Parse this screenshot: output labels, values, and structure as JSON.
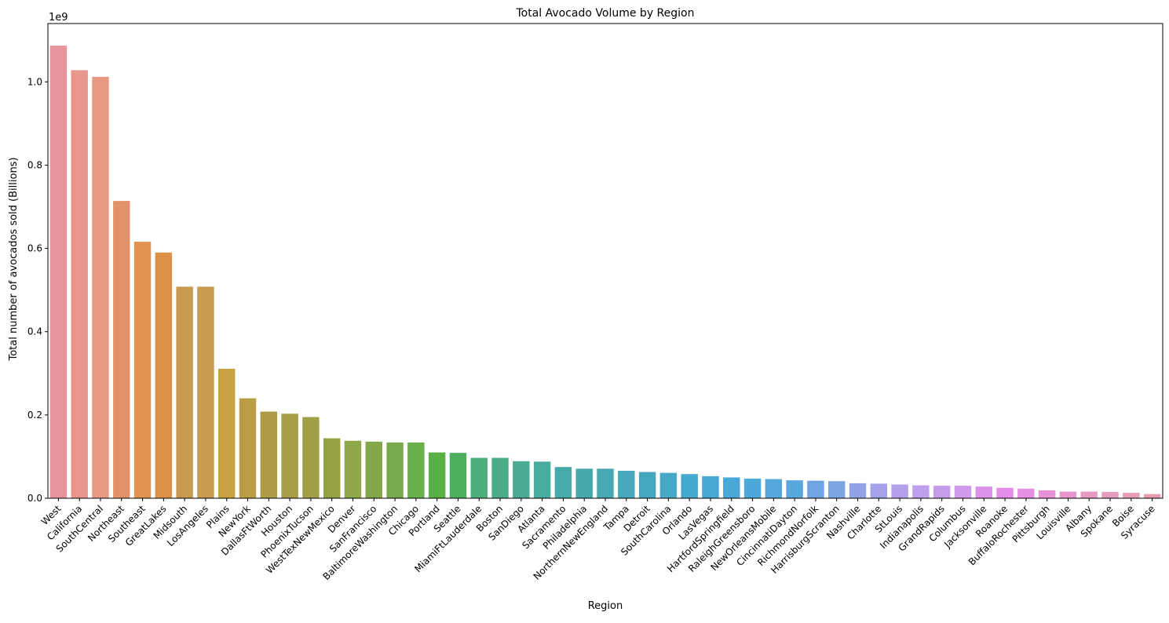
{
  "chart_data": {
    "type": "bar",
    "title": "Total Avocado Volume by Region",
    "xlabel": "Region",
    "ylabel": "Total number of avocados sold (Billions)",
    "offset_label": "1e9",
    "ylim": [
      0,
      1.14
    ],
    "yticks": [
      0.0,
      0.2,
      0.4,
      0.6,
      0.8,
      1.0
    ],
    "ytick_labels": [
      "0.0",
      "0.2",
      "0.4",
      "0.6",
      "0.8",
      "1.0"
    ],
    "grid": false,
    "legend": "none",
    "categories": [
      "West",
      "California",
      "SouthCentral",
      "Northeast",
      "Southeast",
      "GreatLakes",
      "Midsouth",
      "LosAngeles",
      "Plains",
      "NewYork",
      "DallasFtWorth",
      "Houston",
      "PhoenixTucson",
      "WestTexNewMexico",
      "Denver",
      "SanFrancisco",
      "BaltimoreWashington",
      "Chicago",
      "Portland",
      "Seattle",
      "MiamiFtLauderdale",
      "Boston",
      "SanDiego",
      "Atlanta",
      "Sacramento",
      "Philadelphia",
      "NorthernNewEngland",
      "Tampa",
      "Detroit",
      "SouthCarolina",
      "Orlando",
      "LasVegas",
      "HartfordSpringfield",
      "RaleighGreensboro",
      "NewOrleansMobile",
      "CincinnatiDayton",
      "RichmondNorfolk",
      "HarrisburgScranton",
      "Nashville",
      "Charlotte",
      "StLouis",
      "Indianapolis",
      "GrandRapids",
      "Columbus",
      "Jacksonville",
      "Roanoke",
      "BuffaloRochester",
      "Pittsburgh",
      "Louisville",
      "Albany",
      "Spokane",
      "Boise",
      "Syracuse"
    ],
    "values": [
      1.087,
      1.028,
      1.012,
      0.714,
      0.616,
      0.59,
      0.508,
      0.508,
      0.311,
      0.24,
      0.208,
      0.203,
      0.195,
      0.144,
      0.138,
      0.136,
      0.134,
      0.134,
      0.11,
      0.109,
      0.097,
      0.097,
      0.089,
      0.088,
      0.075,
      0.071,
      0.071,
      0.066,
      0.063,
      0.061,
      0.058,
      0.053,
      0.05,
      0.047,
      0.046,
      0.043,
      0.042,
      0.041,
      0.036,
      0.035,
      0.033,
      0.031,
      0.03,
      0.03,
      0.028,
      0.025,
      0.023,
      0.019,
      0.016,
      0.016,
      0.015,
      0.013,
      0.01
    ],
    "colors": [
      "#e8949e",
      "#e9968e",
      "#e99a84",
      "#e1936a",
      "#e1934f",
      "#db9248",
      "#ca9950",
      "#ca9b4e",
      "#c6a240",
      "#b99c43",
      "#ae9b45",
      "#a79e46",
      "#a09f47",
      "#96a145",
      "#8ea748",
      "#84a849",
      "#78aa4c",
      "#6aaf4b",
      "#58b045",
      "#4daf5e",
      "#4bae7a",
      "#4aad86",
      "#48ac94",
      "#47ab9e",
      "#46aaa8",
      "#45a9ac",
      "#46a8b2",
      "#46a8ba",
      "#45a7bf",
      "#47a7c6",
      "#45a8cd",
      "#49a7d4",
      "#4aa8d8",
      "#4da8da",
      "#55a7dc",
      "#59a7df",
      "#6ea4e2",
      "#7ca3e2",
      "#91a2e6",
      "#a3a1e8",
      "#b3a0e9",
      "#bd9fec",
      "#c69deb",
      "#cf9aec",
      "#dd92ea",
      "#e58ce8",
      "#e690e3",
      "#e892d6",
      "#e796cb",
      "#e89ac4",
      "#e79bbf",
      "#e79db8",
      "#e79bac"
    ]
  }
}
